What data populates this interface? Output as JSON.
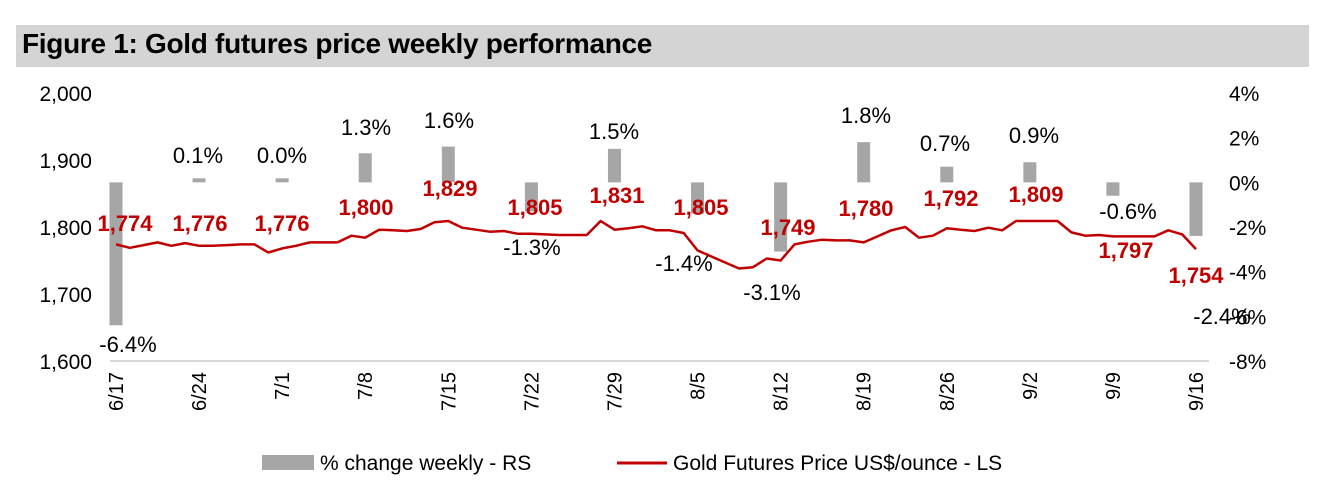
{
  "title": "Figure 1: Gold futures price weekly performance",
  "chart_data": {
    "type": "bar+line",
    "title": "Figure 1: Gold futures price weekly performance",
    "categories": [
      "6/17",
      "6/24",
      "7/1",
      "7/8",
      "7/15",
      "7/22",
      "7/29",
      "8/5",
      "8/12",
      "8/19",
      "8/26",
      "9/2",
      "9/9",
      "9/16"
    ],
    "left_axis": {
      "label": "Gold Futures Price US$/ounce",
      "ylim": [
        1600,
        2000
      ],
      "ticks": [
        "1,600",
        "1,700",
        "1,800",
        "1,900",
        "2,000"
      ],
      "tick_values": [
        1600,
        1700,
        1800,
        1900,
        2000
      ]
    },
    "right_axis": {
      "label": "% change weekly",
      "ylim": [
        -8,
        4
      ],
      "ticks": [
        "-8%",
        "-6%",
        "-4%",
        "-2%",
        "0%",
        "2%",
        "4%"
      ],
      "tick_values": [
        -8,
        -6,
        -4,
        -2,
        0,
        2,
        4
      ]
    },
    "series": [
      {
        "name": "% change weekly - RS",
        "type": "bar",
        "axis": "right",
        "color": "#a6a6a6",
        "values": [
          -6.4,
          0.1,
          0.0,
          1.3,
          1.6,
          -1.3,
          1.5,
          -1.4,
          -3.1,
          1.8,
          0.7,
          0.9,
          -0.6,
          -2.4
        ],
        "labels": [
          "-6.4%",
          "0.1%",
          "0.0%",
          "1.3%",
          "1.6%",
          "-1.3%",
          "1.5%",
          "-1.4%",
          "-3.1%",
          "1.8%",
          "0.7%",
          "0.9%",
          "-0.6%",
          "-2.4%"
        ]
      },
      {
        "name": "Gold Futures Price US$/ounce - LS",
        "type": "line",
        "axis": "left",
        "color": "#c00000",
        "weekly_labels": [
          "1,774",
          "1,776",
          "1,776",
          "1,800",
          "1,829",
          "1,805",
          "1,831",
          "1,805",
          "1,749",
          "1,780",
          "1,792",
          "1,809",
          "1,797",
          "1,754"
        ],
        "weekly_values": [
          1774,
          1776,
          1776,
          1800,
          1829,
          1805,
          1831,
          1805,
          1749,
          1780,
          1792,
          1809,
          1797,
          1754
        ],
        "daily_values": [
          1774,
          1769,
          1773,
          1777,
          1772,
          1776,
          1772,
          1772,
          1773,
          1774,
          1774,
          1762,
          1768,
          1772,
          1777,
          1777,
          1777,
          1787,
          1784,
          1796,
          1795,
          1794,
          1797,
          1807,
          1809,
          1799,
          1796,
          1793,
          1794,
          1790,
          1790,
          1789,
          1788,
          1788,
          1788,
          1809,
          1796,
          1798,
          1801,
          1795,
          1795,
          1791,
          1765,
          1756,
          1747,
          1738,
          1740,
          1753,
          1750,
          1774,
          1778,
          1781,
          1780,
          1780,
          1777,
          1786,
          1795,
          1800,
          1784,
          1787,
          1798,
          1796,
          1794,
          1799,
          1795,
          1809,
          1809,
          1809,
          1809,
          1792,
          1787,
          1788,
          1786,
          1786,
          1786,
          1786,
          1795,
          1789,
          1767
        ]
      }
    ],
    "legend": {
      "position": "bottom",
      "entries": [
        "% change weekly - RS",
        "Gold Futures Price US$/ounce - LS"
      ]
    },
    "grid": false
  }
}
